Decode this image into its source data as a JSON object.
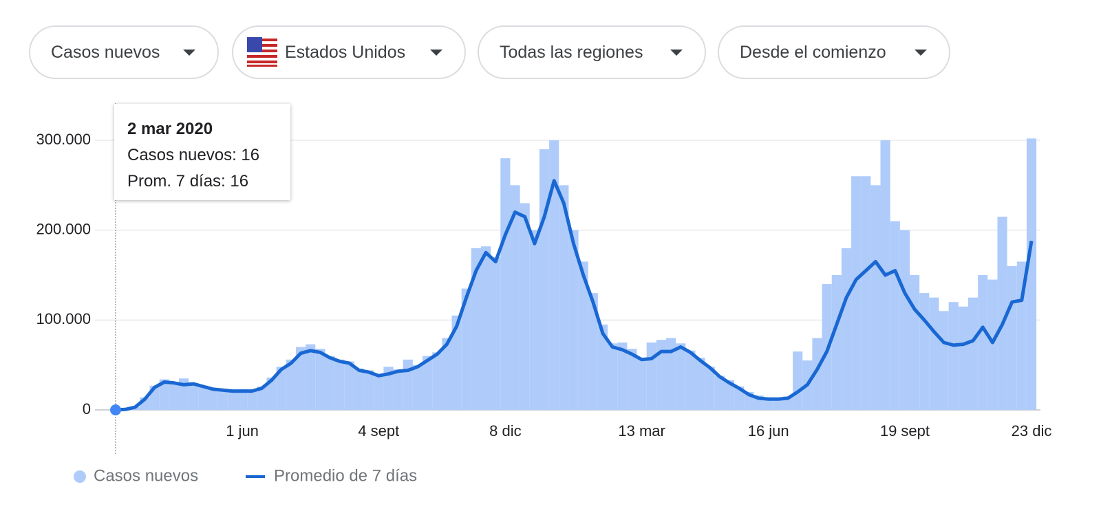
{
  "filters": [
    "Casos nuevos",
    "Estados Unidos",
    "Todas las regiones",
    "Desde el comienzo"
  ],
  "tooltip": {
    "title": "2 mar 2020",
    "lines": [
      "Casos nuevos: 16",
      "Prom. 7 días: 16"
    ]
  },
  "chart_data": {
    "type": "bar-line",
    "categories": [
      null,
      null,
      null,
      null,
      null,
      null,
      null,
      null,
      null,
      null,
      null,
      null,
      null,
      "1 jun",
      null,
      null,
      null,
      null,
      null,
      null,
      null,
      null,
      null,
      null,
      null,
      null,
      null,
      "4 sept",
      null,
      null,
      null,
      null,
      null,
      null,
      null,
      null,
      null,
      null,
      null,
      null,
      "8 dic",
      null,
      null,
      null,
      null,
      null,
      null,
      null,
      null,
      null,
      null,
      null,
      null,
      null,
      "13 mar",
      null,
      null,
      null,
      null,
      null,
      null,
      null,
      null,
      null,
      null,
      null,
      null,
      "16 jun",
      null,
      null,
      null,
      null,
      null,
      null,
      null,
      null,
      null,
      null,
      null,
      null,
      null,
      "19 sept",
      null,
      null,
      null,
      null,
      null,
      null,
      null,
      null,
      null,
      null,
      null,
      null,
      "23 dic"
    ],
    "series": [
      {
        "name": "Casos nuevos",
        "color": "#aecbfa",
        "values": [
          16,
          600,
          3500,
          14000,
          27000,
          34000,
          31000,
          35000,
          30000,
          27000,
          24000,
          23000,
          22000,
          23000,
          22000,
          26000,
          36000,
          48000,
          56000,
          70000,
          73000,
          68000,
          60000,
          56000,
          54000,
          46000,
          44000,
          38000,
          48000,
          45000,
          56000,
          50000,
          60000,
          64000,
          80000,
          105000,
          135000,
          180000,
          182000,
          170000,
          280000,
          250000,
          230000,
          200000,
          290000,
          300000,
          250000,
          200000,
          165000,
          130000,
          95000,
          74000,
          75000,
          68000,
          58000,
          75000,
          78000,
          80000,
          74000,
          66000,
          58000,
          48000,
          38000,
          33000,
          26000,
          20000,
          16000,
          14000,
          12000,
          15000,
          65000,
          55000,
          80000,
          140000,
          150000,
          180000,
          260000,
          260000,
          250000,
          300000,
          210000,
          200000,
          150000,
          130000,
          125000,
          110000,
          120000,
          115000,
          125000,
          150000,
          145000,
          215000,
          160000,
          165000,
          302000
        ]
      },
      {
        "name": "Promedio de 7 días",
        "color": "#1967d2",
        "values": [
          16,
          500,
          3000,
          12000,
          25000,
          31000,
          30000,
          28000,
          29000,
          26000,
          23000,
          22000,
          21000,
          21000,
          21000,
          24000,
          33000,
          45000,
          52000,
          63000,
          66000,
          64000,
          58000,
          54000,
          52000,
          44000,
          42000,
          38000,
          40000,
          43000,
          44000,
          48000,
          55000,
          62000,
          73000,
          93000,
          125000,
          155000,
          175000,
          165000,
          195000,
          220000,
          215000,
          185000,
          215000,
          255000,
          230000,
          185000,
          150000,
          120000,
          85000,
          70000,
          67000,
          62000,
          56000,
          57000,
          65000,
          65000,
          70000,
          64000,
          55000,
          47000,
          37000,
          30000,
          24000,
          17000,
          13000,
          12000,
          12000,
          13000,
          20000,
          28000,
          45000,
          65000,
          95000,
          125000,
          145000,
          155000,
          165000,
          150000,
          155000,
          130000,
          112000,
          100000,
          87000,
          75000,
          72000,
          73000,
          77000,
          92000,
          75000,
          95000,
          120000,
          122000,
          188000
        ]
      }
    ],
    "ylim": [
      0,
      300000
    ],
    "yticks": [
      0,
      {
        "value": 100000,
        "label": "100.000"
      },
      {
        "value": 200000,
        "label": "200.000"
      },
      {
        "value": 300000,
        "label": "300.000"
      }
    ],
    "grid": true
  }
}
